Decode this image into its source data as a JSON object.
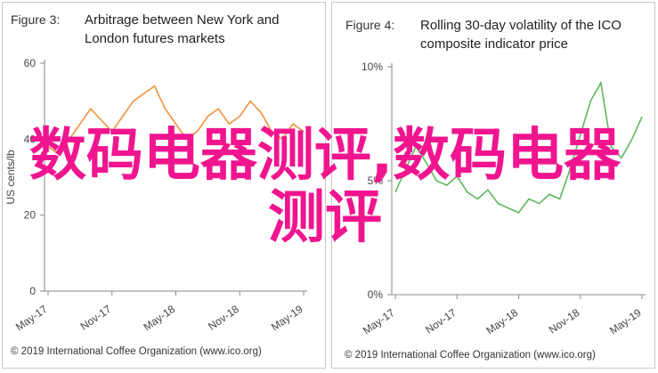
{
  "chart_data": [
    {
      "type": "line",
      "figure_label": "Figure 3:",
      "title": "Arbitrage between New York and London futures markets",
      "y_label": "US cents/lb",
      "categories": [
        "May-17",
        null,
        null,
        null,
        null,
        null,
        "Nov-17",
        null,
        null,
        null,
        null,
        null,
        "May-18",
        null,
        null,
        null,
        null,
        null,
        "Nov-18",
        null,
        null,
        null,
        null,
        null,
        "May-19"
      ],
      "values": [
        38,
        36,
        40,
        44,
        48,
        45,
        42,
        46,
        50,
        52,
        54,
        48,
        44,
        40,
        42,
        46,
        48,
        44,
        46,
        50,
        47,
        42,
        40,
        44,
        42
      ],
      "color": "#f0923a",
      "ylim": [
        0,
        60
      ],
      "yticks": [
        0,
        20,
        40,
        60
      ],
      "grid": false,
      "source": "© 2019 International Coffee Organization (www.ico.org)"
    },
    {
      "type": "line",
      "figure_label": "Figure 4:",
      "title": "Rolling 30-day volatility of the ICO composite indicator price",
      "categories": [
        "May-17",
        null,
        null,
        null,
        null,
        null,
        "Nov-17",
        null,
        null,
        null,
        null,
        null,
        "May-18",
        null,
        null,
        null,
        null,
        null,
        "Nov-18",
        null,
        null,
        null,
        null,
        null,
        "May-19"
      ],
      "values": [
        4.5,
        5.5,
        6.5,
        5.8,
        5.0,
        4.8,
        5.2,
        4.5,
        4.2,
        4.6,
        4.0,
        3.8,
        3.6,
        4.2,
        4.0,
        4.4,
        4.2,
        5.5,
        7.0,
        8.5,
        9.3,
        6.5,
        6.0,
        6.8,
        7.8
      ],
      "color": "#5cb85c",
      "ylim": [
        0,
        10
      ],
      "yticks": [
        {
          "value": 0,
          "label": "0%"
        },
        {
          "value": 5,
          "label": "5%"
        },
        {
          "value": 10,
          "label": "10%"
        }
      ],
      "grid": false,
      "source": "© 2019 International Coffee Organization (www.ico.org)"
    }
  ],
  "overlay_text": "数码电器测评,数码电器测评"
}
